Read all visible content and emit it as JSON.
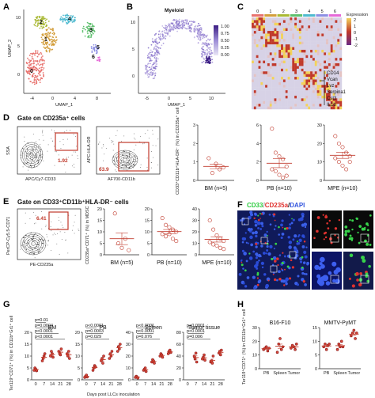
{
  "panels": {
    "A": {
      "label": "A",
      "xlabel": "UMAP_1",
      "ylabel": "UMAP_2",
      "xticks": [
        "-4",
        "0",
        "4",
        "8"
      ],
      "yticks": [
        "10",
        "5",
        "0"
      ],
      "clusters": [
        {
          "name": "0",
          "color": "#e8736f"
        },
        {
          "name": "1",
          "color": "#d39e3c"
        },
        {
          "name": "2",
          "color": "#a9b934"
        },
        {
          "name": "3",
          "color": "#5fc06f"
        },
        {
          "name": "4",
          "color": "#4fbad0"
        },
        {
          "name": "5",
          "color": "#8c8fe3"
        },
        {
          "name": "6",
          "color": "#e66ad8"
        }
      ]
    },
    "B": {
      "label": "B",
      "title": "Myeloid",
      "xlabel": "UMAP_1",
      "xticks": [
        "-5",
        "0",
        "5",
        "10"
      ],
      "yticks": [
        "10",
        "5",
        "0"
      ],
      "scale": [
        "1.00",
        "0.75",
        "0.50",
        "0.25",
        "0.00"
      ]
    },
    "C": {
      "label": "C",
      "columns": [
        "0",
        "1",
        "2",
        "3",
        "4",
        "5",
        "6"
      ],
      "legend_title": "Expression",
      "legend_ticks": [
        "2",
        "1",
        "0",
        "-1",
        "-2"
      ],
      "genes": [
        "CD14",
        "Vcan",
        "Lvz",
        "Serpina1",
        "Cst3",
        "IL1b"
      ]
    },
    "D": {
      "label": "D",
      "gate_title": "Gate on CD235a⁺ cells",
      "flow1": {
        "ylabel": "SSA",
        "xlabel": "APC/Cy7-CD33",
        "gate_value": "1.92"
      },
      "flow2": {
        "ylabel": "APC-HLA-DR",
        "xlabel": "AF700-CD11b",
        "gate_value": "63.9"
      },
      "ylabel": "CD33⁺CD11b⁺HLA-DR⁻ (%) in CD235a⁺ cell",
      "plots": [
        {
          "group": "BM (n=5)",
          "yticks": [
            "0",
            "1",
            "2",
            "3"
          ],
          "ymax": 3,
          "values": [
            1.2,
            0.4,
            0.9,
            0.6,
            0.7
          ],
          "mean": 0.76,
          "sem": 0.15
        },
        {
          "group": "PB (n=10)",
          "yticks": [
            "0",
            "2",
            "4",
            "6"
          ],
          "ymax": 6,
          "values": [
            5.6,
            3.0,
            2.6,
            2.3,
            1.5,
            1.2,
            1.0,
            0.6,
            0.3,
            0.5
          ],
          "mean": 1.9,
          "sem": 0.55
        },
        {
          "group": "MPE (n=10)",
          "yticks": [
            "0",
            "10",
            "20",
            "30"
          ],
          "ymax": 30,
          "values": [
            24,
            20,
            18,
            15,
            13,
            12,
            10,
            8,
            6,
            10
          ],
          "mean": 13.6,
          "sem": 1.8
        }
      ]
    },
    "E": {
      "label": "E",
      "gate_title": "Gate on CD33⁺CD11b⁺HLA-DR⁻ cells",
      "flow": {
        "ylabel": "PerCP-Cy5.5-CD71",
        "xlabel": "PE-CD235a",
        "gate_value": "6.41"
      },
      "ylabel": "CD235a⁺CD71⁺ (%) in MDSC",
      "plots": [
        {
          "group": "BM (n=5)",
          "yticks": [
            "0",
            "5",
            "10",
            "15",
            "20"
          ],
          "ymax": 20,
          "values": [
            18,
            5,
            3,
            7,
            2
          ],
          "mean": 6.6,
          "sem": 2.8
        },
        {
          "group": "PB (n=10)",
          "yticks": [
            "0",
            "5",
            "10",
            "15",
            "20"
          ],
          "ymax": 20,
          "values": [
            16,
            13,
            12,
            11,
            10,
            9,
            8,
            9,
            7,
            6
          ],
          "mean": 10.1,
          "sem": 0.9
        },
        {
          "group": "MPE (n=10)",
          "yticks": [
            "0",
            "10",
            "20",
            "30",
            "40"
          ],
          "ymax": 40,
          "values": [
            30,
            22,
            17,
            14,
            12,
            11,
            9,
            8,
            6,
            5
          ],
          "mean": 13.2,
          "sem": 2.5
        }
      ]
    },
    "F": {
      "label": "F",
      "stain_cd33": "CD33",
      "stain_cd235a": "CD235a",
      "stain_dapi": "DAPI",
      "sep": "/"
    },
    "G": {
      "label": "G",
      "ylabel": "Ter119⁺CD71⁺ (%) in CD11b⁺Gr1⁺ cell",
      "xlabel": "Days post LLCs inoculation",
      "xcats": [
        "0",
        "7",
        "14",
        "21",
        "28"
      ],
      "plots": [
        {
          "title": "BM",
          "yticks": [
            "0",
            "5",
            "10",
            "15",
            "20"
          ],
          "ymax": 20,
          "groups": [
            [
              4,
              5,
              4.5,
              3.8
            ],
            [
              8,
              9,
              10,
              11
            ],
            [
              10,
              12,
              11,
              9.5
            ],
            [
              12,
              11,
              10.5,
              13
            ],
            [
              11,
              10,
              12,
              9
            ]
          ],
          "pvals": [
            "p=0.01",
            "p=0.0004",
            "p<0.0001",
            "p<0.0001"
          ]
        },
        {
          "title": "PB",
          "yticks": [
            "0",
            "5",
            "10",
            "15",
            "20"
          ],
          "ymax": 20,
          "groups": [
            [
              1,
              1.5,
              2,
              1.2
            ],
            [
              4,
              5,
              6,
              5.5
            ],
            [
              8,
              9,
              7,
              10
            ],
            [
              9,
              11,
              10,
              12
            ],
            [
              12,
              14,
              13,
              15
            ]
          ],
          "pvals": [
            "p<0.0001",
            "p=0.0003",
            "p=0.029"
          ]
        },
        {
          "title": "Spleen",
          "yticks": [
            "0",
            "10",
            "20",
            "30",
            "40"
          ],
          "ymax": 40,
          "groups": [
            [
              2,
              3,
              2.5,
              1.5
            ],
            [
              8,
              9,
              10,
              7
            ],
            [
              15,
              17,
              16,
              14
            ],
            [
              20,
              22,
              21,
              19
            ],
            [
              22,
              24,
              25,
              23
            ]
          ],
          "pvals": [
            "p<0.0001",
            "p<0.0001",
            "p=0.076"
          ]
        },
        {
          "title": "Tumor tissue",
          "yticks": [
            "0",
            "20",
            "40",
            "60",
            "80"
          ],
          "ymax": 80,
          "groups": [
            [],
            [
              40,
              35,
              45,
              30
            ],
            [
              35,
              38,
              42,
              33
            ],
            [
              30,
              32,
              28,
              40
            ],
            [
              45,
              48,
              42,
              50
            ]
          ],
          "pvals": [
            "p<0.0001",
            "p<0.0001",
            "p=0.006"
          ]
        }
      ]
    },
    "H": {
      "label": "H",
      "ylabel": "Ter119⁺CD71⁺ (%) in CD11b⁺Gr1⁺ cell",
      "plots": [
        {
          "title": "B16-F10",
          "yticks": [
            "0",
            "10",
            "20",
            "30"
          ],
          "ymax": 30,
          "xcats": [
            "PB",
            "Spleen",
            "Tumor"
          ],
          "groups": [
            [
              14,
              15,
              16,
              13,
              15
            ],
            [
              12,
              18,
              22,
              14,
              16
            ],
            [
              15,
              17,
              16,
              14,
              18
            ]
          ]
        },
        {
          "title": "MMTV-PyMT",
          "yticks": [
            "0",
            "5",
            "10",
            "15"
          ],
          "ymax": 15,
          "xcats": [
            "PB",
            "Spleen",
            "Tumor"
          ],
          "groups": [
            [
              8,
              9,
              7,
              8.5,
              9
            ],
            [
              7,
              9,
              8,
              10,
              8
            ],
            [
              12,
              13,
              14,
              11,
              13
            ]
          ]
        }
      ]
    }
  }
}
